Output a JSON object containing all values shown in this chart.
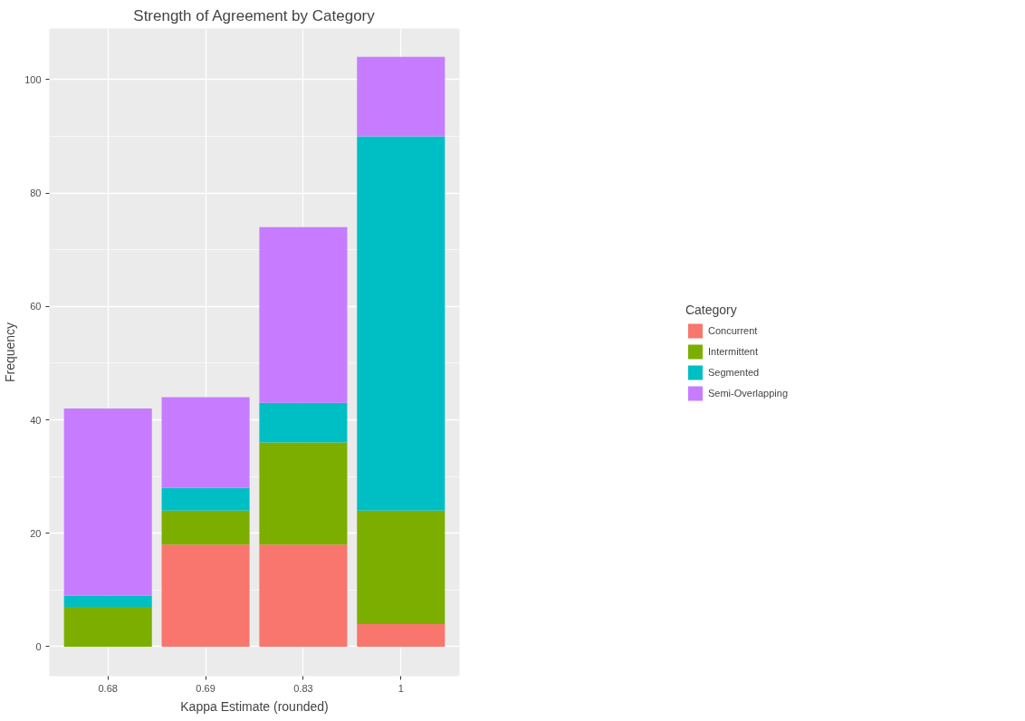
{
  "chart_data": {
    "type": "bar",
    "title": "Strength of Agreement by Category",
    "xlabel": "Kappa Estimate (rounded)",
    "ylabel": "Frequency",
    "legend_title": "Category",
    "categories": [
      "0.68",
      "0.69",
      "0.83",
      "1"
    ],
    "stacked": true,
    "series": [
      {
        "name": "Concurrent",
        "color": "#f8766d",
        "values": [
          0,
          18,
          18,
          4
        ]
      },
      {
        "name": "Intermittent",
        "color": "#7cae00",
        "values": [
          7,
          6,
          18,
          20
        ]
      },
      {
        "name": "Segmented",
        "color": "#00bfc4",
        "values": [
          2,
          4,
          7,
          66
        ]
      },
      {
        "name": "Semi-Overlapping",
        "color": "#c77cff",
        "values": [
          33,
          16,
          31,
          14
        ]
      }
    ],
    "ylim": [
      -5.2,
      109
    ],
    "yticks": [
      0,
      20,
      40,
      60,
      80,
      100
    ],
    "grid": true,
    "legend": "right"
  }
}
